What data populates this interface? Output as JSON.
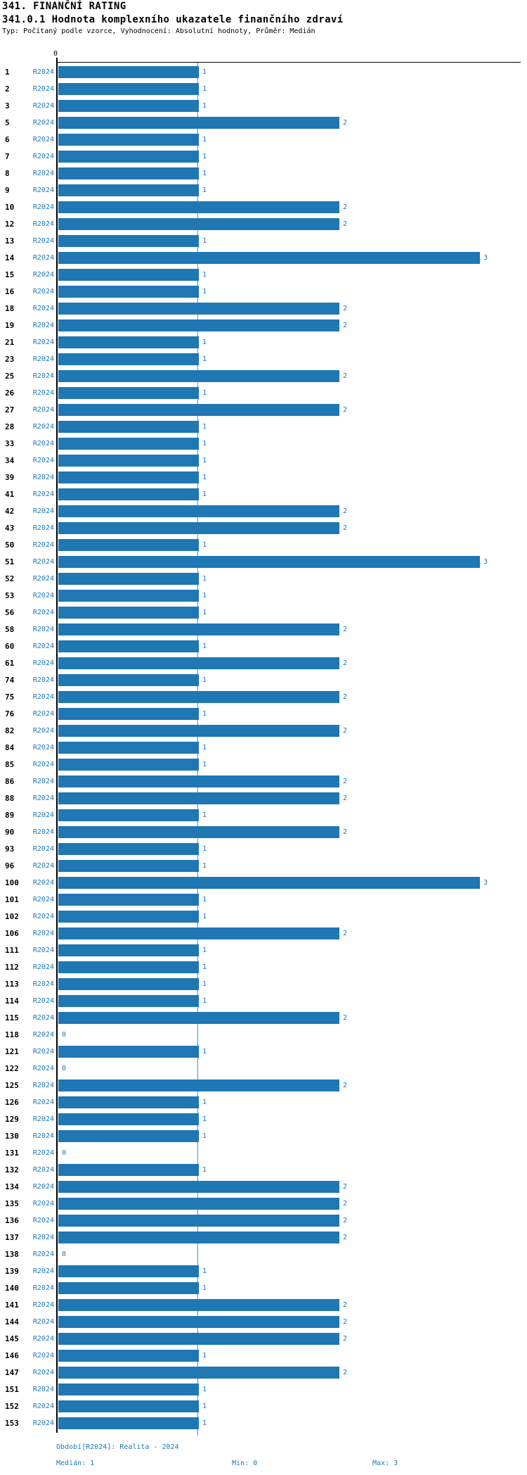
{
  "header": {
    "title": "341. FINANČNÍ RATING",
    "subtitle": "341.0.1 Hodnota komplexního ukazatele finančního zdraví",
    "meta": "Typ: Počítaný podle vzorce, Vyhodnocení: Absolutní hodnoty, Průměr: Medián"
  },
  "chart_data": {
    "type": "bar",
    "orientation": "horizontal",
    "series_label": "R2024",
    "axis_zero_label": "0",
    "xlim": [
      0,
      3.3
    ],
    "median_value": 1,
    "min_value": 0,
    "max_value": 3,
    "grid": false,
    "colors": {
      "bar": "#1f77b4",
      "value_label": "#1f77b4",
      "series_label": "#1f77b4",
      "axis": "#000000",
      "median_line": "#4a94c8"
    },
    "rows": [
      {
        "id": "1",
        "value": 1
      },
      {
        "id": "2",
        "value": 1
      },
      {
        "id": "3",
        "value": 1
      },
      {
        "id": "5",
        "value": 2
      },
      {
        "id": "6",
        "value": 1
      },
      {
        "id": "7",
        "value": 1
      },
      {
        "id": "8",
        "value": 1
      },
      {
        "id": "9",
        "value": 1
      },
      {
        "id": "10",
        "value": 2
      },
      {
        "id": "12",
        "value": 2
      },
      {
        "id": "13",
        "value": 1
      },
      {
        "id": "14",
        "value": 3
      },
      {
        "id": "15",
        "value": 1
      },
      {
        "id": "16",
        "value": 1
      },
      {
        "id": "18",
        "value": 2
      },
      {
        "id": "19",
        "value": 2
      },
      {
        "id": "21",
        "value": 1
      },
      {
        "id": "23",
        "value": 1
      },
      {
        "id": "25",
        "value": 2
      },
      {
        "id": "26",
        "value": 1
      },
      {
        "id": "27",
        "value": 2
      },
      {
        "id": "28",
        "value": 1
      },
      {
        "id": "33",
        "value": 1
      },
      {
        "id": "34",
        "value": 1
      },
      {
        "id": "39",
        "value": 1
      },
      {
        "id": "41",
        "value": 1
      },
      {
        "id": "42",
        "value": 2
      },
      {
        "id": "43",
        "value": 2
      },
      {
        "id": "50",
        "value": 1
      },
      {
        "id": "51",
        "value": 3
      },
      {
        "id": "52",
        "value": 1
      },
      {
        "id": "53",
        "value": 1
      },
      {
        "id": "56",
        "value": 1
      },
      {
        "id": "58",
        "value": 2
      },
      {
        "id": "60",
        "value": 1
      },
      {
        "id": "61",
        "value": 2
      },
      {
        "id": "74",
        "value": 1
      },
      {
        "id": "75",
        "value": 2
      },
      {
        "id": "76",
        "value": 1
      },
      {
        "id": "82",
        "value": 2
      },
      {
        "id": "84",
        "value": 1
      },
      {
        "id": "85",
        "value": 1
      },
      {
        "id": "86",
        "value": 2
      },
      {
        "id": "88",
        "value": 2
      },
      {
        "id": "89",
        "value": 1
      },
      {
        "id": "90",
        "value": 2
      },
      {
        "id": "93",
        "value": 1
      },
      {
        "id": "96",
        "value": 1
      },
      {
        "id": "100",
        "value": 3
      },
      {
        "id": "101",
        "value": 1
      },
      {
        "id": "102",
        "value": 1
      },
      {
        "id": "106",
        "value": 2
      },
      {
        "id": "111",
        "value": 1
      },
      {
        "id": "112",
        "value": 1
      },
      {
        "id": "113",
        "value": 1
      },
      {
        "id": "114",
        "value": 1
      },
      {
        "id": "115",
        "value": 2
      },
      {
        "id": "118",
        "value": 0
      },
      {
        "id": "121",
        "value": 1
      },
      {
        "id": "122",
        "value": 0
      },
      {
        "id": "125",
        "value": 2
      },
      {
        "id": "126",
        "value": 1
      },
      {
        "id": "129",
        "value": 1
      },
      {
        "id": "130",
        "value": 1
      },
      {
        "id": "131",
        "value": 0
      },
      {
        "id": "132",
        "value": 1
      },
      {
        "id": "134",
        "value": 2
      },
      {
        "id": "135",
        "value": 2
      },
      {
        "id": "136",
        "value": 2
      },
      {
        "id": "137",
        "value": 2
      },
      {
        "id": "138",
        "value": 0
      },
      {
        "id": "139",
        "value": 1
      },
      {
        "id": "140",
        "value": 1
      },
      {
        "id": "141",
        "value": 2
      },
      {
        "id": "144",
        "value": 2
      },
      {
        "id": "145",
        "value": 2
      },
      {
        "id": "146",
        "value": 1
      },
      {
        "id": "147",
        "value": 2
      },
      {
        "id": "151",
        "value": 1
      },
      {
        "id": "152",
        "value": 1
      },
      {
        "id": "153",
        "value": 1
      }
    ]
  },
  "footer": {
    "period": "Období[R2024]: Realita - 2024",
    "median": "Medián: 1",
    "min": "Min: 0",
    "max": "Max: 3"
  }
}
